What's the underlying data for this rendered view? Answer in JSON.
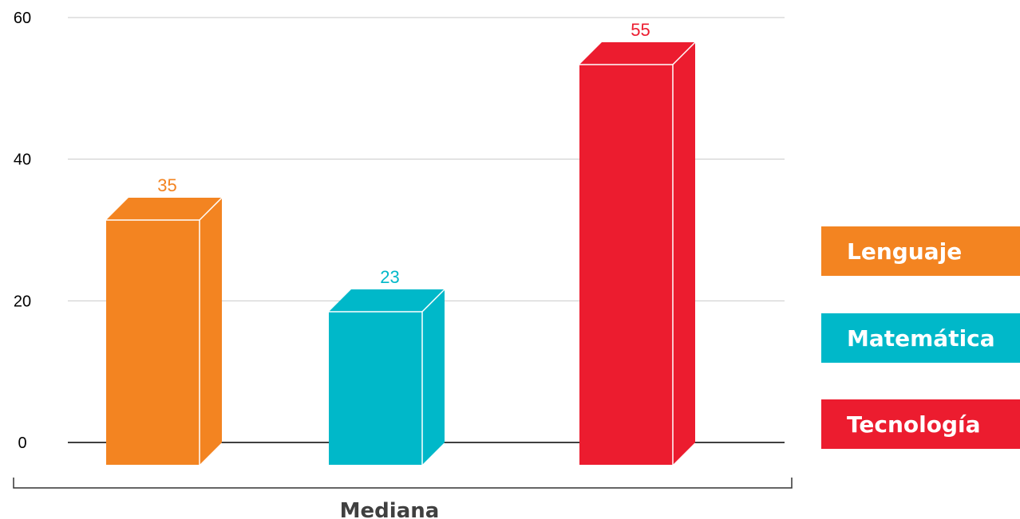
{
  "chart_data": {
    "type": "bar",
    "categories": [
      "Lenguaje",
      "Matemática",
      "Tecnología"
    ],
    "values": [
      35,
      23,
      55
    ],
    "colors": [
      "#f38421",
      "#00b8c9",
      "#ec1c2f"
    ],
    "side_colors": [
      "#f38421",
      "#00b8c9",
      "#ec1c2f"
    ],
    "xlabel": "Mediana",
    "ylim": [
      0,
      60
    ],
    "yticks": [
      "0",
      "20",
      "40",
      "60"
    ],
    "grid": true,
    "legend_position": "right"
  }
}
